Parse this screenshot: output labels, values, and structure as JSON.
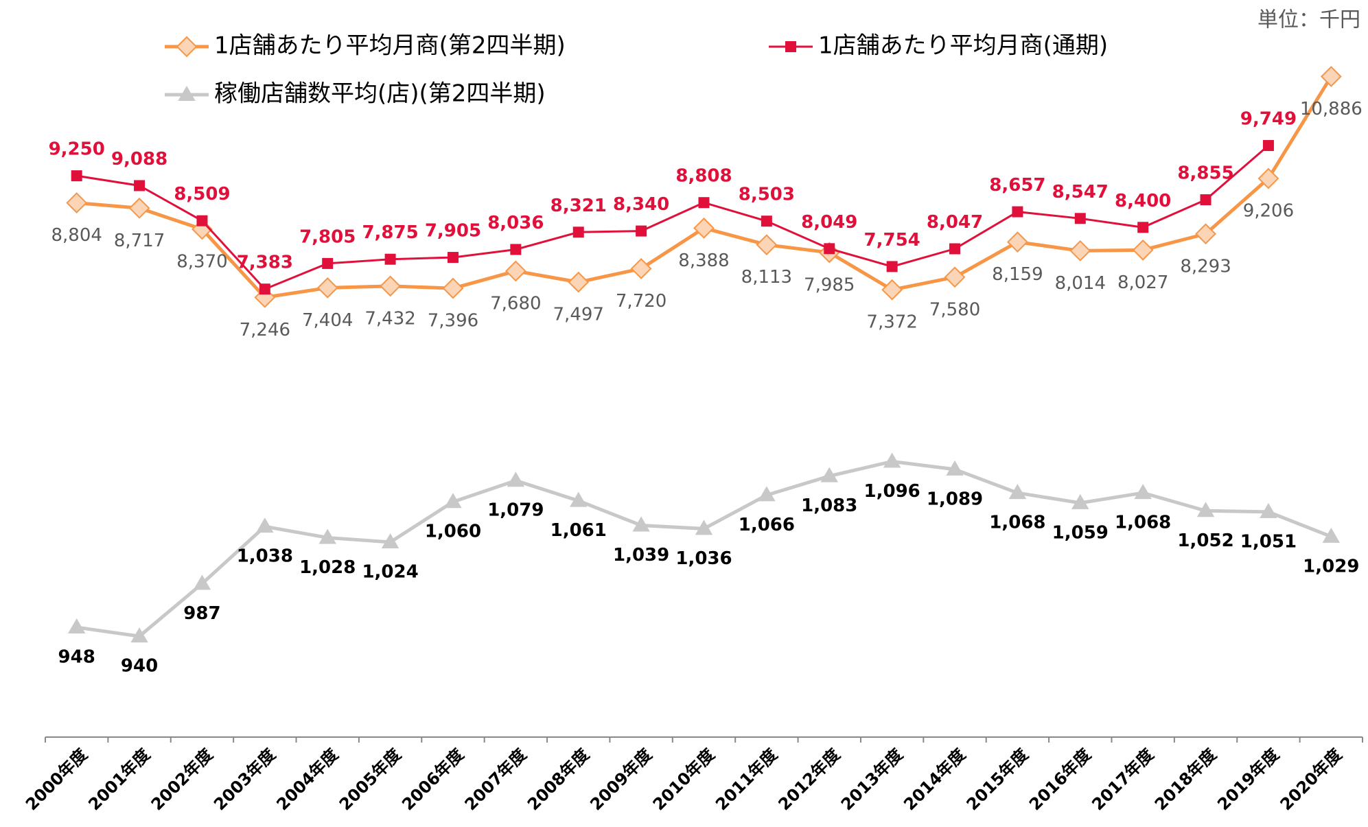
{
  "chart_data": {
    "type": "line",
    "unit_note": "単位：千円",
    "categories": [
      "2000年度",
      "2001年度",
      "2002年度",
      "2003年度",
      "2004年度",
      "2005年度",
      "2006年度",
      "2007年度",
      "2008年度",
      "2009年度",
      "2010年度",
      "2011年度",
      "2012年度",
      "2013年度",
      "2014年度",
      "2015年度",
      "2016年度",
      "2017年度",
      "2018年度",
      "2019年度",
      "2020年度"
    ],
    "ylim": [
      0,
      12000
    ],
    "y2lim": [
      850,
      1500
    ],
    "series": [
      {
        "name": "1店舗あたり平均月商(第2四半期)",
        "color": "#f79646",
        "marker": "diamond",
        "marker_fill": "#fbd5b5",
        "label_color": "#595959",
        "values": [
          8804,
          8717,
          8370,
          7246,
          7404,
          7432,
          7396,
          7680,
          7497,
          7720,
          8388,
          8113,
          7985,
          7372,
          7580,
          8159,
          8014,
          8027,
          8293,
          9206,
          10886
        ],
        "value_labels": [
          "8,804",
          "8,717",
          "8,370",
          "7,246",
          "7,404",
          "7,432",
          "7,396",
          "7,680",
          "7,497",
          "7,720",
          "8,388",
          "8,113",
          "7,985",
          "7,372",
          "7,580",
          "8,159",
          "8,014",
          "8,027",
          "8,293",
          "9,206",
          "10,886"
        ]
      },
      {
        "name": "1店舗あたり平均月商(通期)",
        "color": "#e0103a",
        "marker": "square",
        "marker_fill": "#e0103a",
        "label_color": "#e0103a",
        "values": [
          9250,
          9088,
          8509,
          7383,
          7805,
          7875,
          7905,
          8036,
          8321,
          8340,
          8808,
          8503,
          8049,
          7754,
          8047,
          8657,
          8547,
          8400,
          8855,
          9749,
          null
        ],
        "value_labels": [
          "9,250",
          "9,088",
          "8,509",
          "7,383",
          "7,805",
          "7,875",
          "7,905",
          "8,036",
          "8,321",
          "8,340",
          "8,808",
          "8,503",
          "8,049",
          "7,754",
          "8,047",
          "8,657",
          "8,547",
          "8,400",
          "8,855",
          "9,749",
          null
        ]
      },
      {
        "name": "稼働店舗数平均(店)(第2四半期)",
        "color": "#c8c8c8",
        "marker": "triangle",
        "marker_fill": "#c8c8c8",
        "label_color": "#000000",
        "axis": "y2",
        "values": [
          948,
          940,
          987,
          1038,
          1028,
          1024,
          1060,
          1079,
          1061,
          1039,
          1036,
          1066,
          1083,
          1096,
          1089,
          1068,
          1059,
          1068,
          1052,
          1051,
          1029
        ],
        "value_labels": [
          "948",
          "940",
          "987",
          "1,038",
          "1,028",
          "1,024",
          "1,060",
          "1,079",
          "1,061",
          "1,039",
          "1,036",
          "1,066",
          "1,083",
          "1,096",
          "1,089",
          "1,068",
          "1,059",
          "1,068",
          "1,052",
          "1,051",
          "1,029"
        ]
      }
    ]
  }
}
